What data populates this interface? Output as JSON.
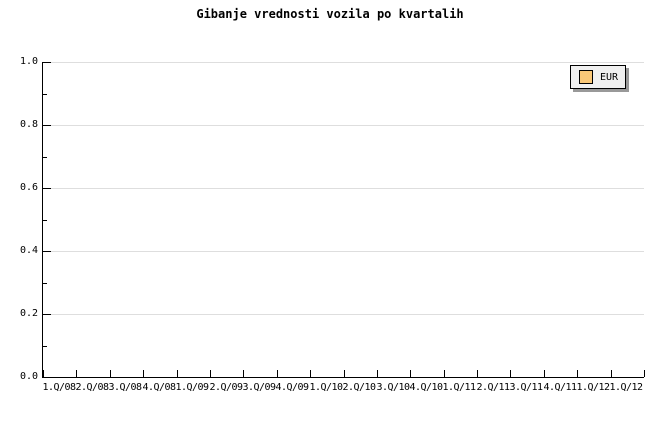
{
  "chart_data": {
    "type": "line",
    "title": "Gibanje vrednosti vozila po kvartalih",
    "categories": [
      "1.Q/08",
      "2.Q/08",
      "3.Q/08",
      "4.Q/08",
      "1.Q/09",
      "2.Q/09",
      "3.Q/09",
      "4.Q/09",
      "1.Q/10",
      "2.Q/10",
      "3.Q/10",
      "4.Q/10",
      "1.Q/11",
      "2.Q/11",
      "3.Q/11",
      "4.Q/11",
      "1.Q/12",
      "1.Q/12"
    ],
    "series": [
      {
        "name": "EUR",
        "color": "#fac878",
        "values": []
      }
    ],
    "xlabel": "",
    "ylabel": "",
    "ylim": [
      0.0,
      1.0
    ],
    "ytick_labels": [
      "0.0",
      "0.2",
      "0.4",
      "0.6",
      "0.8",
      "1.0"
    ],
    "ytick_minor_interval": 0.1,
    "grid": "horizontal-major",
    "legend_position": "top-right"
  },
  "legend": {
    "label": "EUR",
    "swatch_color": "#fac878"
  },
  "colors": {
    "background": "#ffffff",
    "grid": "#dedede",
    "axis": "#000000",
    "text": "#000000",
    "legend_bg": "#f0f0f0",
    "legend_shadow": "#999999"
  }
}
